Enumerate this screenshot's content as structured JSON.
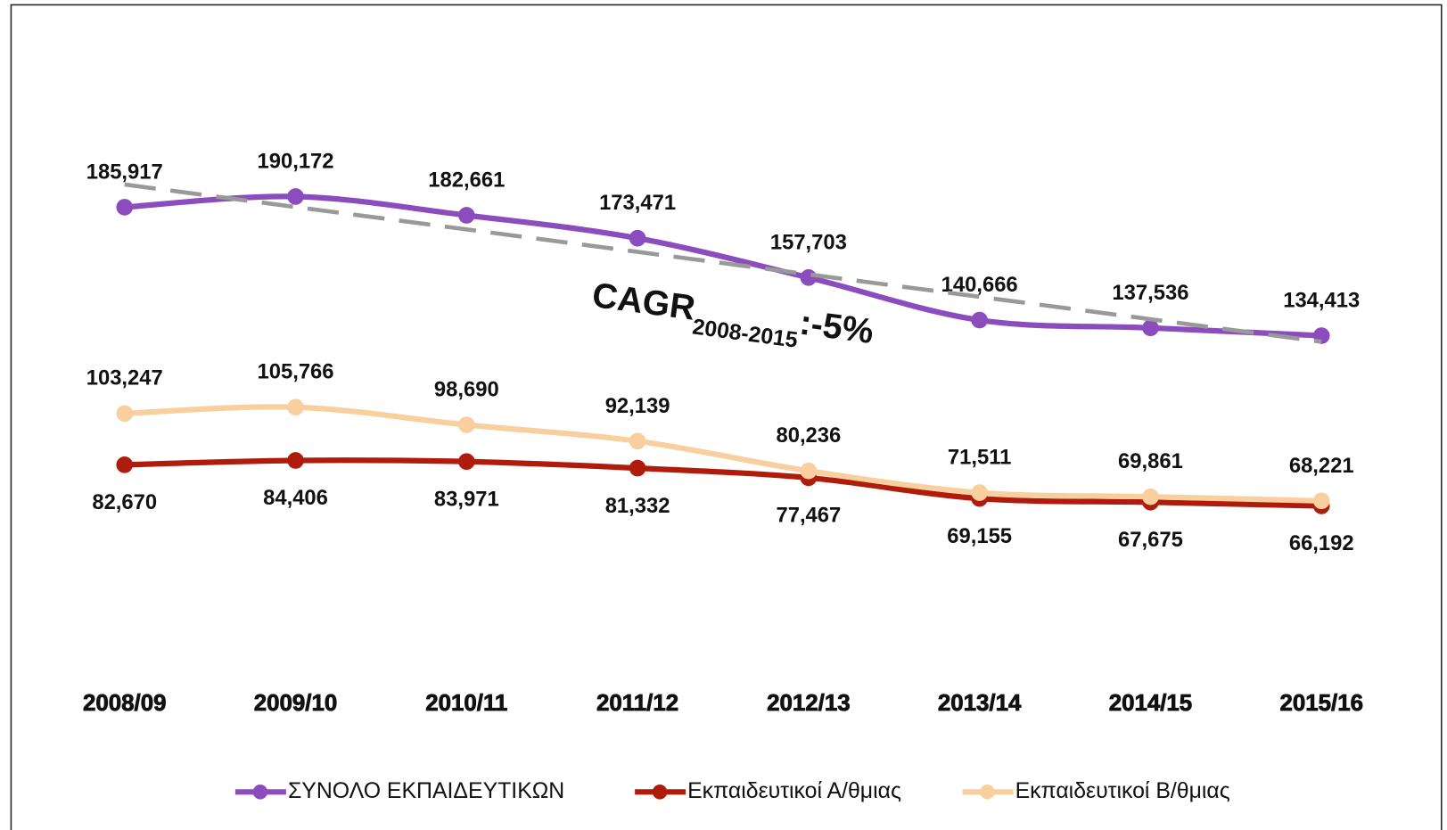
{
  "chart_data": {
    "type": "line",
    "categories": [
      "2008/09",
      "2009/10",
      "2010/11",
      "2011/12",
      "2012/13",
      "2013/14",
      "2014/15",
      "2015/16"
    ],
    "ylim": [
      0,
      250000
    ],
    "series": [
      {
        "name": "ΣΥΝΟΛΟ ΕΚΠΑΙΔΕΥΤΙΚΩΝ",
        "color": "#8b4dbd",
        "label_side": "above",
        "values": [
          185917,
          190172,
          182661,
          173471,
          157703,
          140666,
          137536,
          134413
        ],
        "value_labels": [
          "185,917",
          "190,172",
          "182,661",
          "173,471",
          "157,703",
          "140,666",
          "137,536",
          "134,413"
        ]
      },
      {
        "name": "Εκπαιδευτικοί Α/θμιας",
        "color": "#b01c0c",
        "label_side": "below",
        "values": [
          82670,
          84406,
          83971,
          81332,
          77467,
          69155,
          67675,
          66192
        ],
        "value_labels": [
          "82,670",
          "84,406",
          "83,971",
          "81,332",
          "77,467",
          "69,155",
          "67,675",
          "66,192"
        ]
      },
      {
        "name": "Εκπαιδευτικοί Β/θμιας",
        "color": "#f9cfa0",
        "label_side": "above",
        "values": [
          103247,
          105766,
          98690,
          92139,
          80236,
          71511,
          69861,
          68221
        ],
        "value_labels": [
          "103,247",
          "105,766",
          "98,690",
          "92,139",
          "80,236",
          "71,511",
          "69,861",
          "68,221"
        ]
      }
    ],
    "trendline": {
      "color": "#999999",
      "values": [
        195000,
        132000
      ]
    },
    "annotation": {
      "text": "CAGR",
      "subscript": "2008-2015",
      "suffix": ":-5%"
    },
    "legend": "bottom"
  }
}
